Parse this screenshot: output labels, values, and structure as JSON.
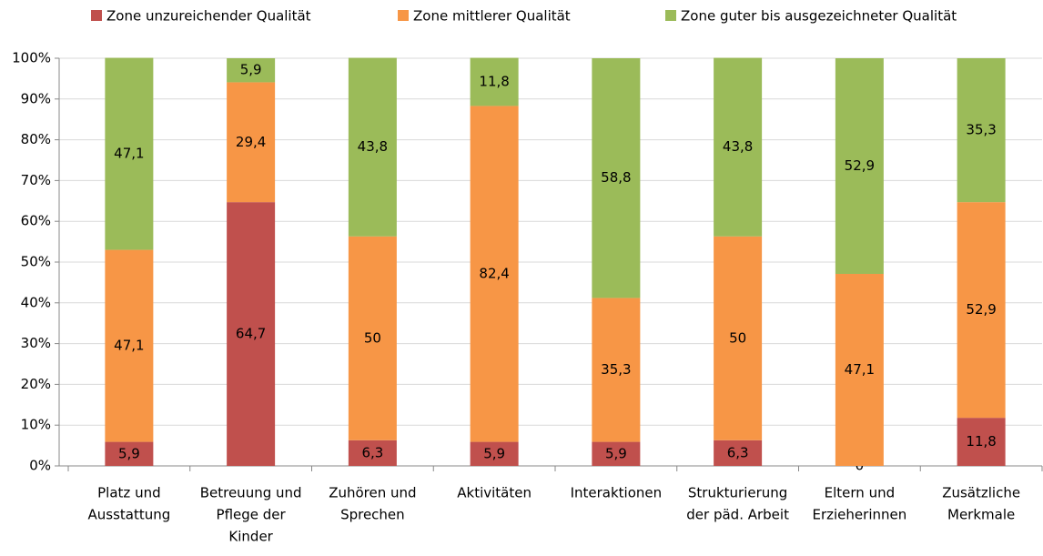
{
  "chart_data": {
    "type": "stacked_bar_percent",
    "categories": [
      [
        "Platz und",
        "Ausstattung"
      ],
      [
        "Betreuung und",
        "Pflege der",
        "Kinder"
      ],
      [
        "Zuhören und",
        "Sprechen"
      ],
      [
        "Aktivitäten"
      ],
      [
        "Interaktionen"
      ],
      [
        "Strukturierung",
        "der päd. Arbeit"
      ],
      [
        "Eltern und",
        "Erzieherinnen"
      ],
      [
        "Zusätzliche",
        "Merkmale"
      ]
    ],
    "series": [
      {
        "name": "Zone unzureichender Qualität",
        "color": "#c0504d",
        "values": [
          5.9,
          64.7,
          6.3,
          5.9,
          5.9,
          6.3,
          0,
          11.8
        ],
        "value_labels": [
          "5,9",
          "64,7",
          "6,3",
          "5,9",
          "5,9",
          "6,3",
          "0",
          "11,8"
        ]
      },
      {
        "name": "Zone mittlerer Qualität",
        "color": "#f79646",
        "values": [
          47.1,
          29.4,
          50,
          82.4,
          35.3,
          50,
          47.1,
          52.9
        ],
        "value_labels": [
          "47,1",
          "29,4",
          "50",
          "82,4",
          "35,3",
          "50",
          "47,1",
          "52,9"
        ]
      },
      {
        "name": "Zone guter bis ausgezeichneter Qualität",
        "color": "#9bbb59",
        "values": [
          47.1,
          5.9,
          43.8,
          11.8,
          58.8,
          43.8,
          52.9,
          35.3
        ],
        "value_labels": [
          "47,1",
          "5,9",
          "43,8",
          "11,8",
          "58,8",
          "43,8",
          "52,9",
          "35,3"
        ]
      }
    ],
    "ylim": [
      0,
      100
    ],
    "yticks": [
      {
        "value": 0,
        "label": "0%"
      },
      {
        "value": 10,
        "label": "10%"
      },
      {
        "value": 20,
        "label": "20%"
      },
      {
        "value": 30,
        "label": "30%"
      },
      {
        "value": 40,
        "label": "40%"
      },
      {
        "value": 50,
        "label": "50%"
      },
      {
        "value": 60,
        "label": "60%"
      },
      {
        "value": 70,
        "label": "70%"
      },
      {
        "value": 80,
        "label": "80%"
      },
      {
        "value": 90,
        "label": "90%"
      },
      {
        "value": 100,
        "label": "100%"
      }
    ],
    "grid": true,
    "legend": "top"
  }
}
